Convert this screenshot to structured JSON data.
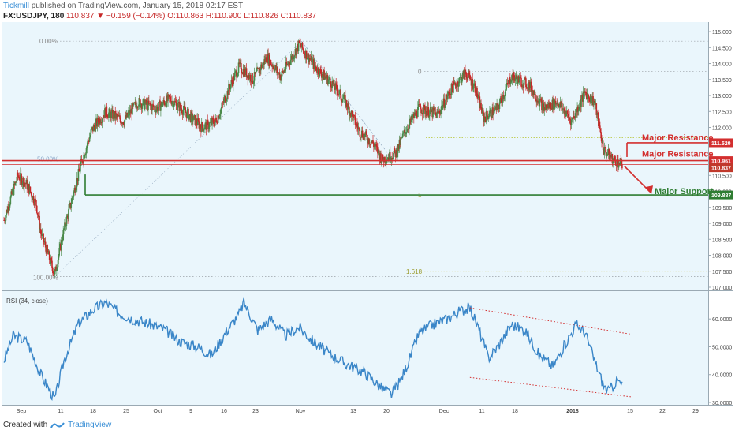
{
  "header": {
    "publisher": "Tickmill",
    "published_text": "published on TradingView.com, January 15, 2018 02:17 EST",
    "symbol": "FX:USDJPY, 180",
    "price_change": "110.837 ▼ −0.159 (−0.14%)",
    "ohlc": "O:110.863 H:110.900 L:110.826 C:110.837"
  },
  "footer": {
    "created_with": "Created with",
    "brand": "TradingView"
  },
  "colors": {
    "up": "#4a8a4a",
    "down": "#c62828",
    "resistance": "#d32f2f",
    "support": "#2e7d32",
    "rsi": "#3a86c8",
    "plot_bg": "#eaf6fc",
    "trend_channel": "#d32f2f",
    "fib": "#9a9a2a"
  },
  "chart_data": [
    {
      "type": "candlestick",
      "title": "",
      "ylim": [
        107.0,
        115.1
      ],
      "y_ticks": [
        "115.000",
        "114.500",
        "114.000",
        "113.500",
        "113.000",
        "112.500",
        "112.000",
        "111.500",
        "111.000",
        "110.500",
        "110.000",
        "109.500",
        "109.000",
        "108.500",
        "108.000",
        "107.500",
        "107.000"
      ],
      "x_ticks": [
        "Sep",
        "11",
        "18",
        "25",
        "Oct",
        "9",
        "16",
        "23",
        "Nov",
        "13",
        "20",
        "Dec",
        "11",
        "18",
        "2018",
        "15",
        "22",
        "29"
      ],
      "anchors": [
        {
          "d": 0,
          "v": 109.1
        },
        {
          "d": 3,
          "v": 110.5
        },
        {
          "d": 5,
          "v": 110.2
        },
        {
          "d": 7,
          "v": 109.6
        },
        {
          "d": 8,
          "v": 108.7
        },
        {
          "d": 11,
          "v": 107.4
        },
        {
          "d": 13,
          "v": 108.8
        },
        {
          "d": 15,
          "v": 109.9
        },
        {
          "d": 17,
          "v": 111.0
        },
        {
          "d": 19,
          "v": 111.9
        },
        {
          "d": 22,
          "v": 112.5
        },
        {
          "d": 26,
          "v": 112.2
        },
        {
          "d": 29,
          "v": 112.8
        },
        {
          "d": 33,
          "v": 112.6
        },
        {
          "d": 36,
          "v": 112.9
        },
        {
          "d": 40,
          "v": 112.4
        },
        {
          "d": 43,
          "v": 112.0
        },
        {
          "d": 46,
          "v": 112.2
        },
        {
          "d": 49,
          "v": 113.3
        },
        {
          "d": 51,
          "v": 113.9
        },
        {
          "d": 54,
          "v": 113.5
        },
        {
          "d": 57,
          "v": 114.2
        },
        {
          "d": 60,
          "v": 113.6
        },
        {
          "d": 64,
          "v": 114.6
        },
        {
          "d": 65,
          "v": 114.4
        },
        {
          "d": 68,
          "v": 113.8
        },
        {
          "d": 71,
          "v": 113.4
        },
        {
          "d": 74,
          "v": 112.8
        },
        {
          "d": 77,
          "v": 111.9
        },
        {
          "d": 80,
          "v": 111.5
        },
        {
          "d": 82,
          "v": 111.0
        },
        {
          "d": 85,
          "v": 111.2
        },
        {
          "d": 87,
          "v": 111.9
        },
        {
          "d": 90,
          "v": 112.6
        },
        {
          "d": 94,
          "v": 112.4
        },
        {
          "d": 97,
          "v": 113.2
        },
        {
          "d": 100,
          "v": 113.7
        },
        {
          "d": 102,
          "v": 113.3
        },
        {
          "d": 104,
          "v": 112.3
        },
        {
          "d": 107,
          "v": 112.6
        },
        {
          "d": 110,
          "v": 113.6
        },
        {
          "d": 114,
          "v": 113.3
        },
        {
          "d": 117,
          "v": 112.6
        },
        {
          "d": 120,
          "v": 112.8
        },
        {
          "d": 123,
          "v": 112.2
        },
        {
          "d": 126,
          "v": 113.1
        },
        {
          "d": 128,
          "v": 112.8
        },
        {
          "d": 130,
          "v": 111.3
        },
        {
          "d": 132,
          "v": 111.0
        },
        {
          "d": 134,
          "v": 110.84
        }
      ],
      "fib": {
        "anchor_high": 114.7,
        "anchor_low": 107.33,
        "label_0": "0.00%",
        "label_50": "50.00%",
        "label_100": "100.00%",
        "ext_0": "0",
        "ext_1": "1",
        "ext_1618": "1.618",
        "level_0": 113.75,
        "level_1": 109.887,
        "level_1618": 107.5
      },
      "levels": {
        "resistance_1": {
          "value": 111.52,
          "label": "Major Resistance",
          "price_tag": "111.520"
        },
        "resistance_2": {
          "value": 110.961,
          "label": "Major Resistance",
          "price_tag": "110.961"
        },
        "support": {
          "value": 109.887,
          "label": "Major Support",
          "price_tag": "109.887"
        },
        "last_price": {
          "value": 110.837,
          "price_tag": "110.837"
        }
      }
    },
    {
      "type": "line",
      "title": "RSI (34, close)",
      "ylim": [
        30,
        68
      ],
      "y_ticks": [
        "60.0000",
        "50.0000",
        "40.0000",
        "30.0000"
      ],
      "anchors": [
        {
          "d": 0,
          "v": 45
        },
        {
          "d": 2,
          "v": 54
        },
        {
          "d": 5,
          "v": 52
        },
        {
          "d": 8,
          "v": 40
        },
        {
          "d": 10,
          "v": 34
        },
        {
          "d": 11,
          "v": 31
        },
        {
          "d": 13,
          "v": 45
        },
        {
          "d": 16,
          "v": 58
        },
        {
          "d": 19,
          "v": 63
        },
        {
          "d": 22,
          "v": 66
        },
        {
          "d": 25,
          "v": 62
        },
        {
          "d": 28,
          "v": 60
        },
        {
          "d": 32,
          "v": 58
        },
        {
          "d": 35,
          "v": 56
        },
        {
          "d": 38,
          "v": 52
        },
        {
          "d": 42,
          "v": 50
        },
        {
          "d": 45,
          "v": 47
        },
        {
          "d": 48,
          "v": 55
        },
        {
          "d": 51,
          "v": 62
        },
        {
          "d": 52,
          "v": 66
        },
        {
          "d": 55,
          "v": 56
        },
        {
          "d": 58,
          "v": 60
        },
        {
          "d": 61,
          "v": 54
        },
        {
          "d": 64,
          "v": 57
        },
        {
          "d": 67,
          "v": 52
        },
        {
          "d": 70,
          "v": 48
        },
        {
          "d": 74,
          "v": 44
        },
        {
          "d": 78,
          "v": 41
        },
        {
          "d": 82,
          "v": 35
        },
        {
          "d": 84,
          "v": 33
        },
        {
          "d": 86,
          "v": 38
        },
        {
          "d": 88,
          "v": 46
        },
        {
          "d": 90,
          "v": 55
        },
        {
          "d": 93,
          "v": 58
        },
        {
          "d": 96,
          "v": 60
        },
        {
          "d": 99,
          "v": 63
        },
        {
          "d": 101,
          "v": 64
        },
        {
          "d": 103,
          "v": 56
        },
        {
          "d": 105,
          "v": 46
        },
        {
          "d": 107,
          "v": 50
        },
        {
          "d": 110,
          "v": 58
        },
        {
          "d": 113,
          "v": 56
        },
        {
          "d": 116,
          "v": 47
        },
        {
          "d": 119,
          "v": 43
        },
        {
          "d": 122,
          "v": 52
        },
        {
          "d": 124,
          "v": 58
        },
        {
          "d": 126,
          "v": 55
        },
        {
          "d": 128,
          "v": 45
        },
        {
          "d": 130,
          "v": 36
        },
        {
          "d": 131,
          "v": 34
        },
        {
          "d": 133,
          "v": 38
        },
        {
          "d": 134,
          "v": 36
        }
      ],
      "channel_upper": [
        [
          101,
          64
        ],
        [
          136,
          54.5
        ]
      ],
      "channel_lower": [
        [
          101,
          39
        ],
        [
          136,
          32
        ]
      ]
    }
  ]
}
